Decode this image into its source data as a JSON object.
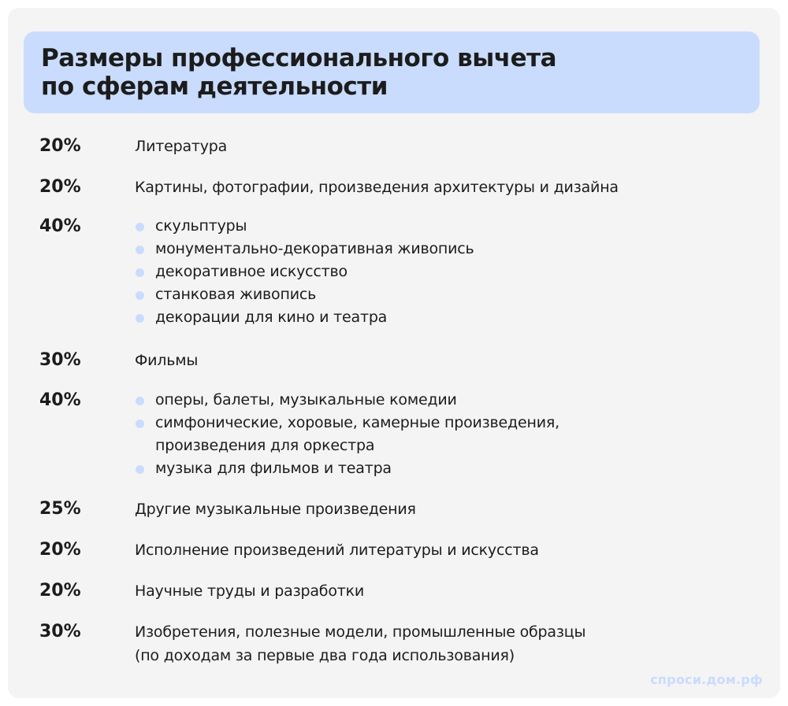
{
  "title": "Размеры профессионального вычета\nпо сферам деятельности",
  "colors": {
    "background": "#f4f4f4",
    "accent": "#c9dcfd",
    "text": "#1c1c1c"
  },
  "rows": [
    {
      "percent": "20%",
      "text": "Литература"
    },
    {
      "percent": "20%",
      "text": "Картины, фотографии, произведения архитектуры и дизайна"
    },
    {
      "percent": "40%",
      "items": [
        "скульптуры",
        "монументально-декоративная живопись",
        "декоративное искусство",
        "станковая живопись",
        "декорации для кино и театра"
      ]
    },
    {
      "percent": "30%",
      "text": "Фильмы"
    },
    {
      "percent": "40%",
      "items": [
        "оперы, балеты, музыкальные комедии",
        "симфонические, хоровые, камерные произведения,\nпроизведения для оркестра",
        "музыка для фильмов и театра"
      ]
    },
    {
      "percent": "25%",
      "text": "Другие музыкальные произведения"
    },
    {
      "percent": "20%",
      "text": "Исполнение произведений литературы и искусства"
    },
    {
      "percent": "20%",
      "text": "Научные труды и разработки"
    },
    {
      "percent": "30%",
      "text": "Изобретения, полезные модели, промышленные образцы\n(по доходам за первые два года использования)"
    }
  ],
  "watermark": "спроси.дом.рф"
}
